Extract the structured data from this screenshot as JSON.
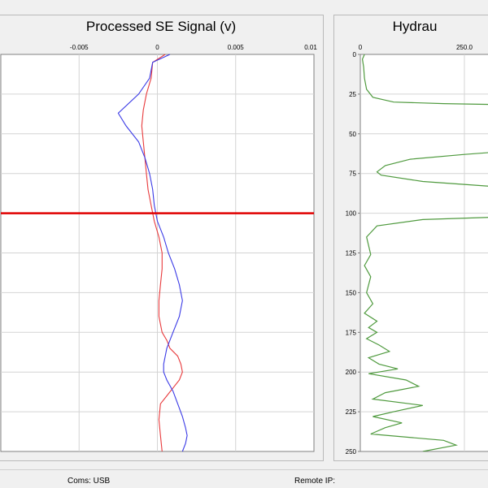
{
  "se_panel": {
    "title": "Processed SE Signal (v)"
  },
  "hyd_panel": {
    "title": "Hydrau"
  },
  "status": {
    "coms": "Coms: USB",
    "remote_ip": "Remote IP:"
  },
  "colors": {
    "red_trace": "#e8393b",
    "blue_trace": "#3a3ae6",
    "marker_line": "#e00000",
    "green_trace": "#4f9a3e"
  },
  "chart_data": [
    {
      "type": "line",
      "title": "Processed SE Signal (v)",
      "x_ticks": [
        "-0.005",
        "0",
        "0.005",
        "0.01"
      ],
      "xlim": [
        -0.01,
        0.01
      ],
      "ylim": [
        0,
        250
      ],
      "y_inverted": true,
      "marker_y": 100,
      "grid": true,
      "series": [
        {
          "color": "#e8393b",
          "x": [
            0.0005,
            -0.0003,
            -0.0004,
            -0.0007,
            -0.0009,
            -0.001,
            -0.0009,
            -0.0008,
            -0.0007,
            -0.0006,
            -0.0004,
            -0.0002,
            0.0001,
            0.0003,
            0.0003,
            0.0002,
            0.0001,
            0.0001,
            0.0003,
            0.0006,
            0.0008,
            0.0013,
            0.0015,
            0.0016,
            0.0014,
            0.001,
            0.0006,
            0.0002,
            0.0001,
            0.0002,
            0.0003
          ],
          "y": [
            0,
            5,
            15,
            25,
            35,
            45,
            55,
            65,
            75,
            85,
            95,
            105,
            115,
            125,
            135,
            145,
            155,
            165,
            175,
            180,
            185,
            190,
            195,
            200,
            205,
            210,
            215,
            220,
            230,
            240,
            250
          ]
        },
        {
          "color": "#3a3ae6",
          "x": [
            0.0008,
            -0.0003,
            -0.0005,
            -0.0012,
            -0.0025,
            -0.002,
            -0.0012,
            -0.0008,
            -0.0005,
            -0.0003,
            -0.0002,
            0.0,
            0.0004,
            0.0007,
            0.0011,
            0.0014,
            0.0016,
            0.0014,
            0.001,
            0.0006,
            0.0004,
            0.0004,
            0.0006,
            0.001,
            0.0013,
            0.0016,
            0.0018,
            0.0019,
            0.0018,
            0.0016
          ],
          "y": [
            0,
            5,
            15,
            25,
            37,
            45,
            55,
            65,
            75,
            85,
            95,
            105,
            115,
            125,
            135,
            145,
            155,
            165,
            175,
            185,
            195,
            200,
            205,
            212,
            220,
            228,
            235,
            240,
            245,
            250
          ]
        }
      ]
    },
    {
      "type": "line",
      "title": "Hydrau",
      "x_ticks": [
        "0",
        "250.0"
      ],
      "y_ticks": [
        "0",
        "25",
        "50",
        "75",
        "100",
        "125",
        "150",
        "175",
        "200",
        "225",
        "250"
      ],
      "xlim": [
        0,
        500
      ],
      "ylim": [
        0,
        250
      ],
      "y_inverted": true,
      "grid": true,
      "series": [
        {
          "color": "#4f9a3e",
          "x": [
            10,
            5,
            8,
            10,
            15,
            30,
            80,
            200,
            420,
            520,
            520,
            400,
            250,
            120,
            60,
            40,
            50,
            150,
            420,
            520,
            520,
            380,
            150,
            40,
            15,
            25,
            10,
            25,
            15,
            30,
            10,
            40,
            20,
            40,
            15,
            45,
            70,
            20,
            45,
            90,
            20,
            110,
            140,
            60,
            30,
            150,
            80,
            30,
            100,
            60,
            25,
            200,
            230,
            150
          ],
          "y": [
            0,
            3,
            8,
            15,
            22,
            27,
            30,
            31,
            32,
            32,
            58,
            60,
            63,
            66,
            70,
            74,
            76,
            80,
            85,
            87,
            101,
            102,
            104,
            108,
            115,
            126,
            133,
            140,
            150,
            157,
            163,
            168,
            172,
            175,
            179,
            183,
            187,
            191,
            195,
            198,
            201,
            205,
            209,
            213,
            217,
            221,
            225,
            228,
            232,
            235,
            239,
            243,
            246,
            250
          ]
        }
      ]
    }
  ]
}
